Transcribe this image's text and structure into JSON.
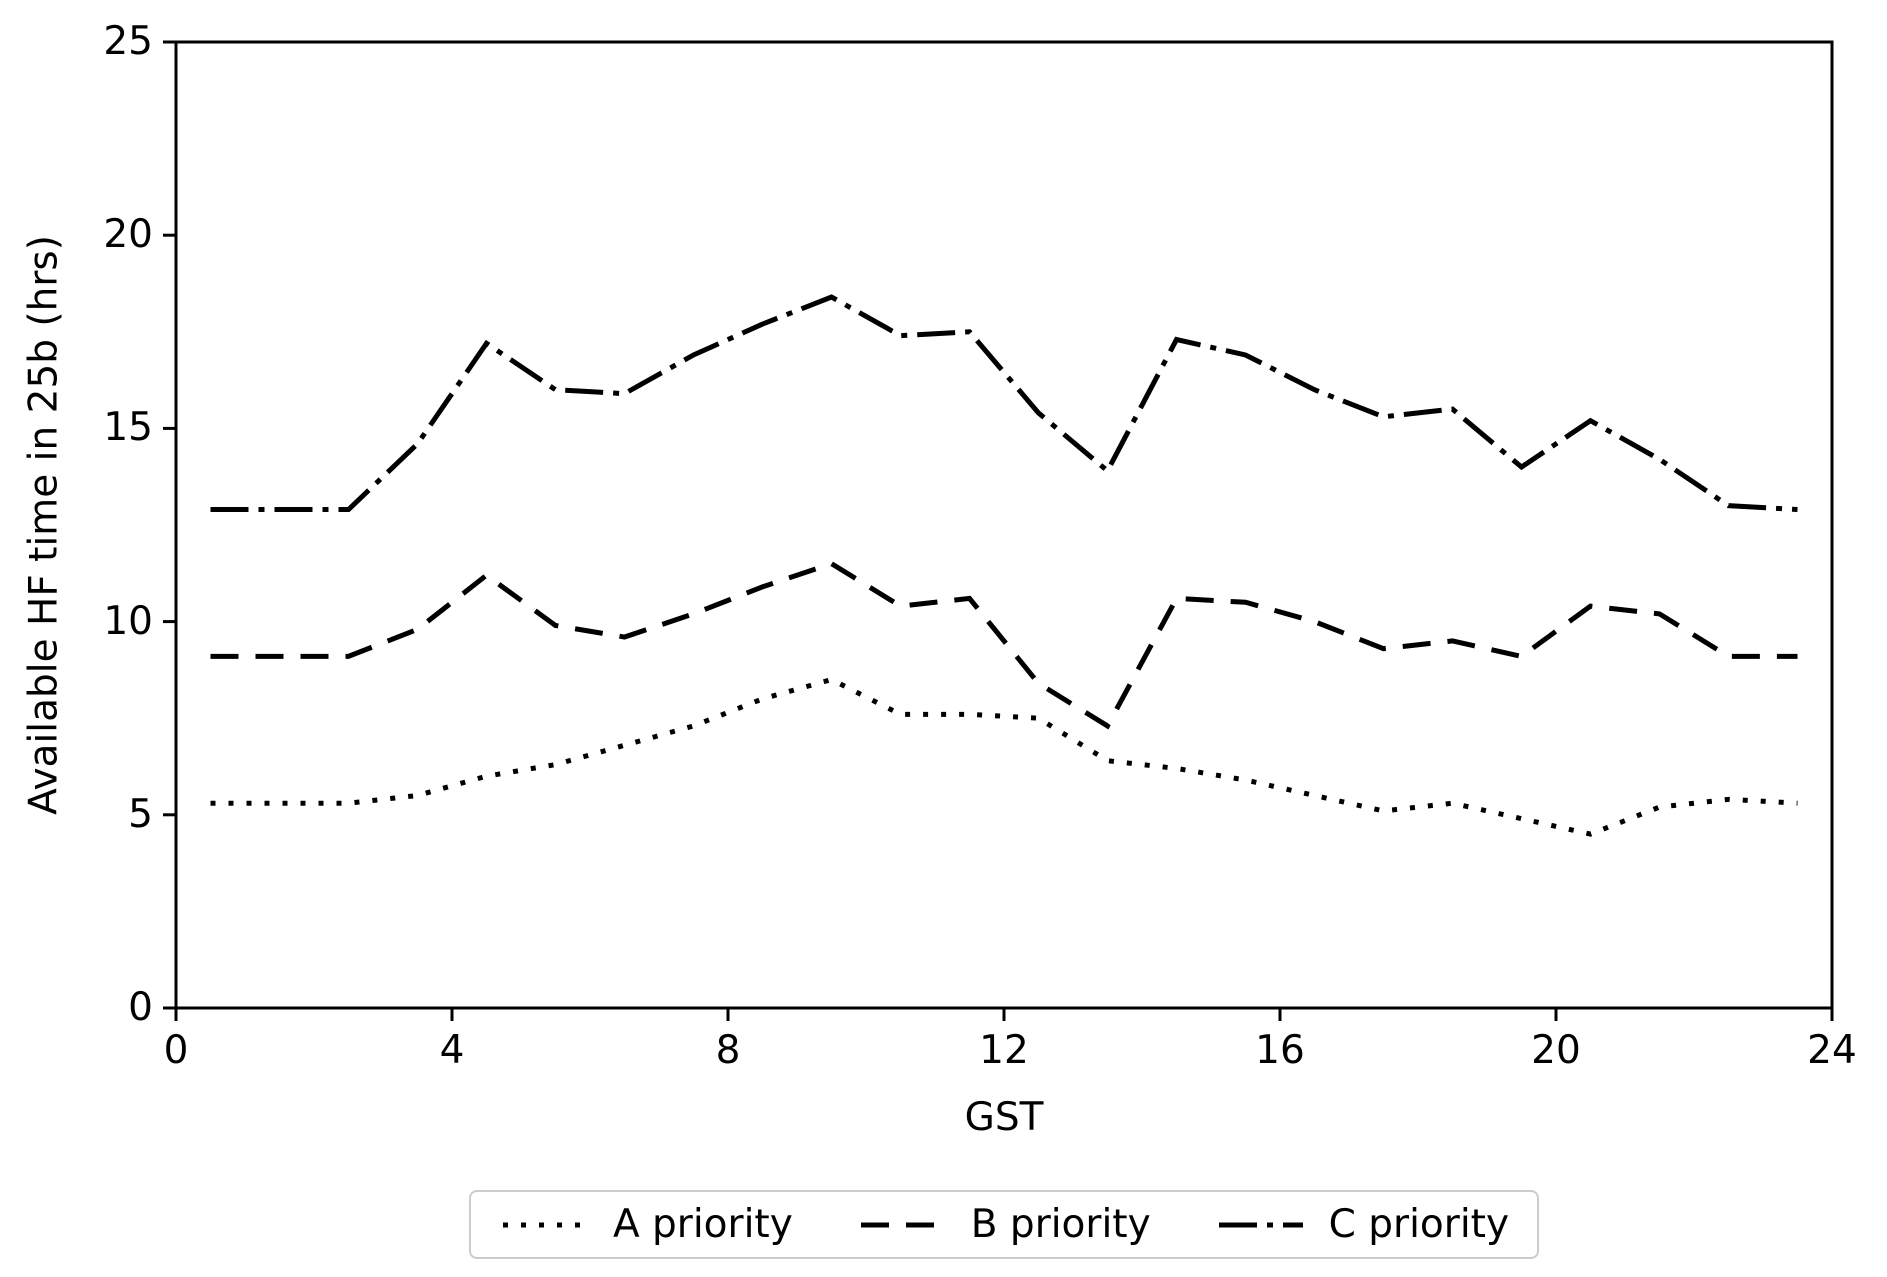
{
  "figure": {
    "xlabel": "GST",
    "ylabel": "Available HF time in 25b (hrs)",
    "background_color": "#ffffff",
    "line_color": "#000000",
    "frame_color": "#cccccc"
  },
  "chart_data": {
    "type": "line",
    "title": "",
    "xlabel": "GST",
    "ylabel": "Available HF time in 25b (hrs)",
    "xlim": [
      0,
      24
    ],
    "ylim": [
      0,
      25
    ],
    "xticks": [
      0,
      4,
      8,
      12,
      16,
      20,
      24
    ],
    "yticks": [
      0,
      5,
      10,
      15,
      20,
      25
    ],
    "grid": false,
    "legend_position": "bottom-center",
    "x": [
      0.5,
      1.5,
      2.5,
      3.5,
      4.5,
      5.5,
      6.5,
      7.5,
      8.5,
      9.5,
      10.5,
      11.5,
      12.5,
      13.5,
      14.5,
      15.5,
      16.5,
      17.5,
      18.5,
      19.5,
      20.5,
      21.5,
      22.5,
      23.5
    ],
    "series": [
      {
        "name": "A priority",
        "linestyle": "dotted",
        "color": "#000000",
        "values": [
          5.3,
          5.3,
          5.3,
          5.5,
          6.0,
          6.3,
          6.8,
          7.3,
          8.0,
          8.5,
          7.6,
          7.6,
          7.5,
          6.4,
          6.2,
          5.9,
          5.5,
          5.1,
          5.3,
          4.9,
          4.5,
          5.2,
          5.4,
          5.3
        ]
      },
      {
        "name": "B priority",
        "linestyle": "dashed",
        "color": "#000000",
        "values": [
          9.1,
          9.1,
          9.1,
          9.8,
          11.2,
          9.9,
          9.6,
          10.2,
          10.9,
          11.5,
          10.4,
          10.6,
          8.4,
          7.3,
          10.6,
          10.5,
          10.0,
          9.3,
          9.5,
          9.1,
          10.4,
          10.2,
          9.1,
          9.1
        ]
      },
      {
        "name": "C priority",
        "linestyle": "dashdot",
        "color": "#000000",
        "values": [
          12.9,
          12.9,
          12.9,
          14.6,
          17.2,
          16.0,
          15.9,
          16.9,
          17.7,
          18.4,
          17.4,
          17.5,
          15.4,
          13.9,
          17.3,
          16.9,
          16.0,
          15.3,
          15.5,
          14.0,
          15.2,
          14.2,
          13.0,
          12.9
        ]
      }
    ]
  },
  "legend": {
    "items": [
      {
        "label": "A priority",
        "style": "dotted"
      },
      {
        "label": "B priority",
        "style": "dashed"
      },
      {
        "label": "C priority",
        "style": "dashdot"
      }
    ]
  }
}
